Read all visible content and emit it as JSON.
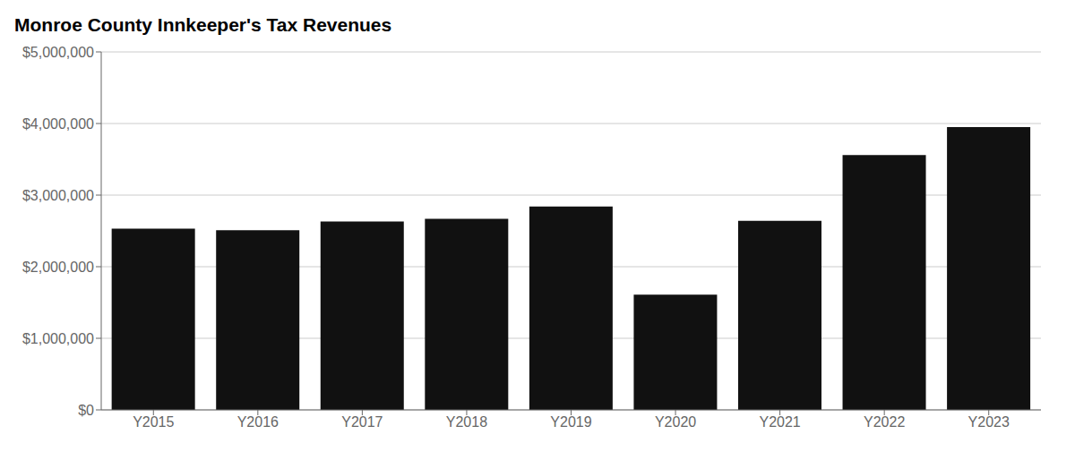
{
  "chart_data": {
    "type": "bar",
    "title": "Monroe County Innkeeper's Tax Revenues",
    "categories": [
      "Y2015",
      "Y2016",
      "Y2017",
      "Y2018",
      "Y2019",
      "Y2020",
      "Y2021",
      "Y2022",
      "Y2023"
    ],
    "values": [
      2530000,
      2510000,
      2630000,
      2670000,
      2840000,
      1610000,
      2640000,
      3560000,
      3950000
    ],
    "color": "#111111",
    "ylim": [
      0,
      5000000
    ],
    "yticks": [
      {
        "value": 0,
        "label": "$0"
      },
      {
        "value": 1000000,
        "label": "$1,000,000"
      },
      {
        "value": 2000000,
        "label": "$2,000,000"
      },
      {
        "value": 3000000,
        "label": "$3,000,000"
      },
      {
        "value": 4000000,
        "label": "$4,000,000"
      },
      {
        "value": 5000000,
        "label": "$5,000,000"
      }
    ],
    "grid": true
  }
}
